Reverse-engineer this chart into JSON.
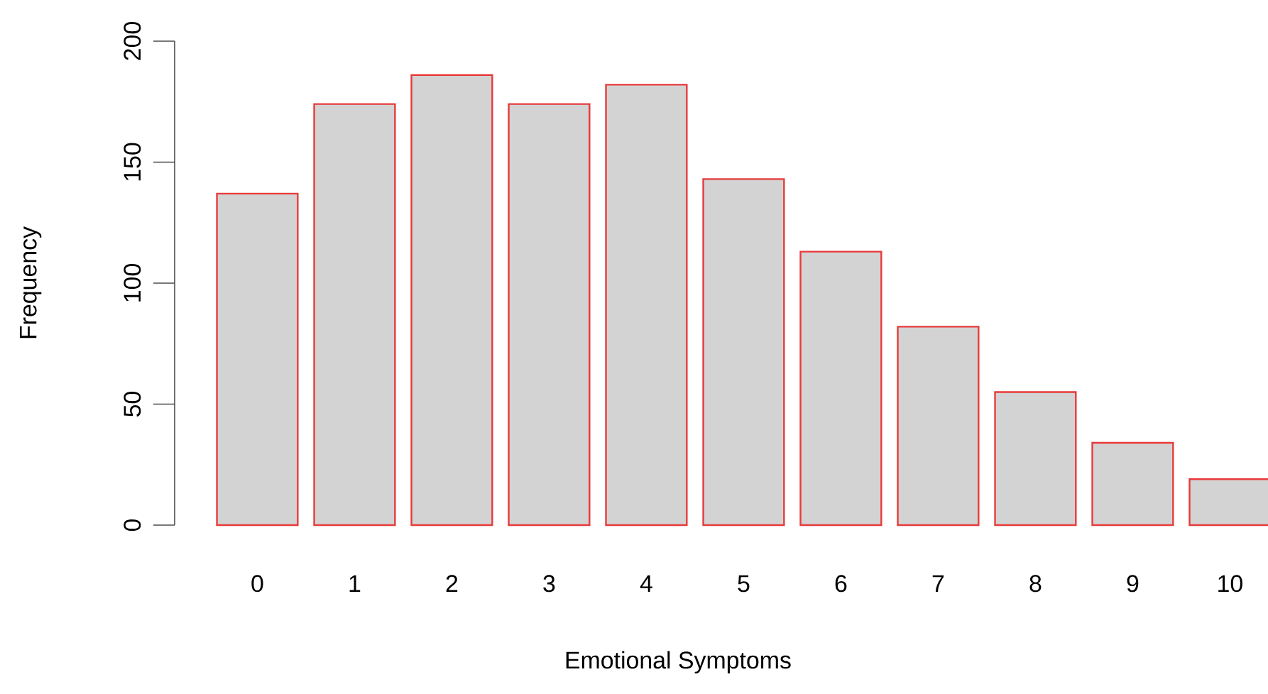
{
  "chart_data": {
    "type": "bar",
    "xlabel": "Emotional Symptoms",
    "ylabel": "Frequency",
    "categories": [
      "0",
      "1",
      "2",
      "3",
      "4",
      "5",
      "6",
      "7",
      "8",
      "9",
      "10"
    ],
    "values": [
      137,
      174,
      186,
      174,
      182,
      143,
      113,
      82,
      55,
      34,
      19
    ],
    "color": "#d3d3d3",
    "ylim": [
      0,
      200
    ],
    "yticks": [
      0,
      50,
      100,
      150,
      200
    ]
  }
}
